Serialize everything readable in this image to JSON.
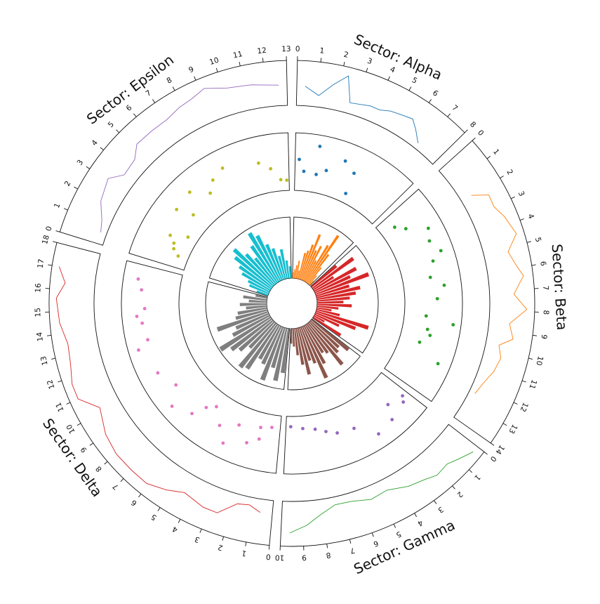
{
  "chart_data": {
    "type": "circos",
    "tracks": [
      "line",
      "scatter",
      "bar"
    ],
    "sectors": [
      {
        "name": "Alpha",
        "title": "Sector: Alpha",
        "range": [
          0,
          8
        ],
        "tick_labels": [
          "0",
          "1",
          "2",
          "3",
          "4",
          "5",
          "6",
          "7",
          "8"
        ],
        "line_color": "#1f77b4",
        "scatter_color": "#1f77b4",
        "bar_color": "#ff7f0e",
        "line": {
          "x": [
            0.4,
            1.1,
            1.7,
            2.3,
            2.7,
            3.7,
            4.2,
            4.7,
            5.3,
            5.8,
            6.2,
            6.7
          ],
          "y": [
            0.42,
            0.2,
            0.55,
            0.88,
            0.18,
            0.28,
            0.28,
            0.38,
            0.44,
            0.5,
            0.31,
            0.05
          ]
        },
        "scatter": {
          "x": [
            0.3,
            0.7,
            1.6,
            1.7,
            2.4,
            3.5,
            4.4,
            4.5
          ],
          "y": [
            0.55,
            0.3,
            0.88,
            0.27,
            0.4,
            0.72,
            0.55,
            0.08
          ]
        },
        "bars": [
          0.1,
          0.15,
          0.22,
          0.3,
          0.14,
          0.45,
          0.5,
          0.62,
          0.82,
          0.55,
          0.65,
          0.4,
          0.72,
          0.95,
          0.6,
          0.35,
          0.2,
          0.1
        ]
      },
      {
        "name": "Beta",
        "title": "Sector: Beta",
        "range": [
          0,
          14
        ],
        "tick_labels": [
          "0",
          "1",
          "2",
          "3",
          "4",
          "5",
          "6",
          "7",
          "8",
          "9",
          "10",
          "11",
          "12",
          "13",
          "14"
        ],
        "line_color": "#ff7f0e",
        "scatter_color": "#2ca02c",
        "bar_color": "#d62728",
        "line": {
          "x": [
            2.0,
            2.4,
            3.0,
            3.6,
            4.5,
            5.2,
            5.9,
            6.4,
            7.2,
            7.9,
            8.6,
            9.3,
            9.7,
            10.3,
            11.0,
            11.7,
            12.4
          ],
          "y": [
            0.2,
            0.62,
            0.6,
            0.75,
            0.9,
            0.55,
            0.7,
            0.85,
            0.55,
            0.9,
            0.45,
            0.6,
            0.25,
            0.38,
            0.3,
            0.15,
            0.05
          ]
        },
        "scatter": {
          "x": [
            1.0,
            1.6,
            2.4,
            3.2,
            4.1,
            4.6,
            5.7,
            6.4,
            7.3,
            8.6,
            9.0,
            9.6,
            10.0,
            10.7,
            11.7
          ],
          "y": [
            0.2,
            0.38,
            0.8,
            0.7,
            0.85,
            0.62,
            0.48,
            0.75,
            0.58,
            0.35,
            0.95,
            0.42,
            0.5,
            0.32,
            0.85
          ]
        },
        "bars": [
          0.55,
          0.85,
          0.4,
          0.8,
          0.65,
          0.95,
          0.58,
          0.75,
          0.66,
          0.55,
          0.44,
          0.58,
          0.36,
          0.25,
          0.4,
          0.92,
          0.72,
          0.45,
          0.2,
          0.55
        ]
      },
      {
        "name": "Gamma",
        "title": "Sector: Gamma",
        "range": [
          0,
          10
        ],
        "tick_labels": [
          "0",
          "1",
          "2",
          "3",
          "4",
          "5",
          "6",
          "7",
          "8",
          "9",
          "10"
        ],
        "line_color": "#2ca02c",
        "scatter_color": "#9467bd",
        "bar_color": "#8c564b",
        "line": {
          "x": [
            0.3,
            1.0,
            1.5,
            2.2,
            2.8,
            3.6,
            4.6,
            5.5,
            6.5,
            7.3,
            8.1,
            8.8,
            9.6
          ],
          "y": [
            0.88,
            0.7,
            0.58,
            0.62,
            0.5,
            0.4,
            0.2,
            0.25,
            0.12,
            0.1,
            0.3,
            0.55,
            0.75
          ]
        },
        "scatter": {
          "x": [
            0.4,
            0.7,
            1.6,
            2.1,
            3.4,
            4.7,
            6.0,
            6.8,
            7.6,
            8.6,
            9.6
          ],
          "y": [
            0.55,
            0.65,
            0.45,
            0.75,
            0.82,
            0.45,
            0.4,
            0.3,
            0.2,
            0.15,
            0.1
          ]
        },
        "bars": [
          0.8,
          0.65,
          0.7,
          0.9,
          0.6,
          0.55,
          0.72,
          0.95,
          0.65,
          0.58,
          0.8,
          0.62,
          0.45,
          0.3,
          0.25
        ]
      },
      {
        "name": "Delta",
        "title": "Sector: Delta",
        "range": [
          0,
          18
        ],
        "tick_labels": [
          "0",
          "1",
          "2",
          "3",
          "4",
          "5",
          "6",
          "7",
          "8",
          "9",
          "10",
          "11",
          "12",
          "13",
          "14",
          "15",
          "16",
          "17",
          "18"
        ],
        "line_color": "#d62728",
        "scatter_color": "#e377c2",
        "bar_color": "#7f7f7f",
        "line": {
          "x": [
            0.6,
            1.2,
            1.8,
            2.6,
            3.3,
            4.4,
            5.2,
            6.1,
            7.0,
            8.0,
            9.0,
            10.2,
            11.0,
            11.7,
            12.6,
            13.5,
            14.5,
            15.6,
            16.3,
            17.0
          ],
          "y": [
            0.25,
            0.1,
            0.15,
            0.55,
            0.55,
            0.42,
            0.62,
            0.8,
            0.8,
            0.8,
            0.7,
            0.45,
            0.88,
            0.88,
            0.75,
            0.7,
            0.85,
            0.92,
            0.7,
            0.92
          ]
        },
        "scatter": {
          "x": [
            0.7,
            1.5,
            1.6,
            2.3,
            3.3,
            3.8,
            4.6,
            5.6,
            6.2,
            6.7,
            8.0,
            9.0,
            10.4,
            12.3,
            12.8,
            14.0,
            14.5,
            15.0,
            16.3,
            17.0
          ],
          "y": [
            0.15,
            0.45,
            0.2,
            0.6,
            0.3,
            0.8,
            0.5,
            0.2,
            0.35,
            0.65,
            0.85,
            0.5,
            0.7,
            0.9,
            0.65,
            0.7,
            0.8,
            0.62,
            0.7,
            0.8
          ]
        },
        "bars": [
          0.75,
          0.9,
          0.7,
          0.95,
          0.7,
          0.65,
          0.9,
          0.95,
          0.6,
          0.75,
          0.85,
          1.0,
          0.7,
          0.6,
          0.9,
          0.55,
          0.5,
          0.35,
          0.45,
          0.3,
          0.4,
          0.2
        ]
      },
      {
        "name": "Epsilon",
        "title": "Sector: Epsilon",
        "range": [
          0,
          13
        ],
        "tick_labels": [
          "0",
          "1",
          "2",
          "3",
          "4",
          "5",
          "6",
          "7",
          "8",
          "9",
          "10",
          "11",
          "12",
          "13"
        ],
        "line_color": "#9467bd",
        "scatter_color": "#bcbd22",
        "bar_color": "#17becf",
        "line": {
          "x": [
            0.6,
            1.2,
            2.0,
            3.1,
            3.7,
            4.6,
            5.2,
            6.1,
            7.0,
            7.8,
            8.5,
            9.2,
            10.2,
            11.3,
            12.6
          ],
          "y": [
            0.05,
            0.15,
            0.4,
            0.55,
            0.25,
            0.3,
            0.55,
            0.55,
            0.55,
            0.65,
            0.7,
            0.82,
            0.62,
            0.55,
            0.45
          ]
        },
        "scatter": {
          "x": [
            1.0,
            1.4,
            1.8,
            2.2,
            2.8,
            4.0,
            4.5,
            5.5,
            6.6,
            7.3,
            8.3,
            10.8,
            11.6,
            12.3,
            12.8
          ],
          "y": [
            0.1,
            0.25,
            0.3,
            0.45,
            0.1,
            0.65,
            0.3,
            0.7,
            0.4,
            0.6,
            0.72,
            0.55,
            0.38,
            0.12,
            0.1
          ]
        },
        "bars": [
          0.2,
          0.35,
          0.4,
          0.55,
          0.65,
          0.8,
          0.9,
          0.7,
          0.55,
          0.75,
          0.95,
          0.85,
          0.65,
          0.55,
          0.4,
          0.5,
          0.3,
          0.2
        ]
      }
    ]
  }
}
